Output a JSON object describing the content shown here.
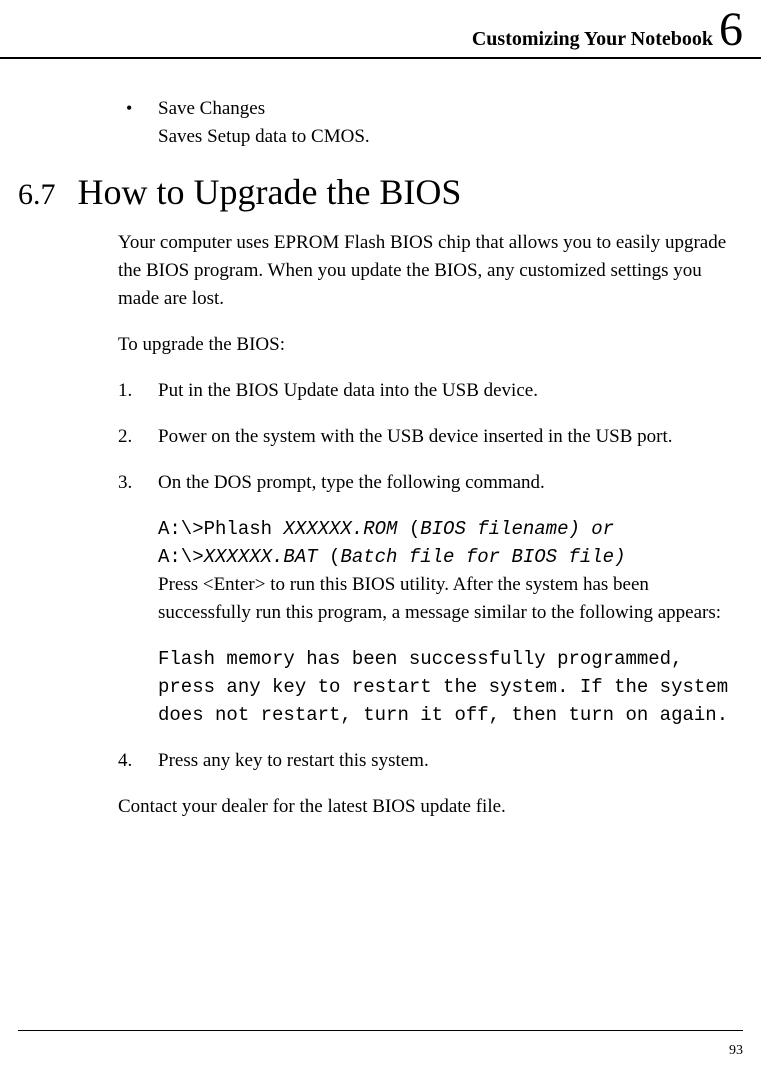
{
  "header": {
    "title": "Customizing Your Notebook",
    "chapter": "6"
  },
  "bullet": {
    "label": "Save Changes",
    "desc": "Saves Setup data to CMOS."
  },
  "section": {
    "number": "6.7",
    "title": "How to Upgrade the BIOS"
  },
  "intro": "Your computer uses EPROM Flash BIOS chip that allows you to easily upgrade the BIOS program. When you update the BIOS, any customized settings you made are lost.",
  "preamble": "To upgrade the BIOS:",
  "steps": {
    "s1": {
      "num": "1.",
      "text": "Put in the BIOS Update data into the USB device."
    },
    "s2": {
      "num": "2.",
      "text": "Power on the system with the USB device inserted in the USB port."
    },
    "s3": {
      "num": "3.",
      "text": "On the DOS prompt, type the following command.",
      "code_line1_a": "A:\\>Phlash ",
      "code_line1_b": "XXXXXX.ROM ",
      "code_line1_c": "(",
      "code_line1_d": "BIOS filename)  or",
      "code_line2_a": "A:\\>",
      "code_line2_b": "XXXXXX.BAT ",
      "code_line2_c": "(",
      "code_line2_d": "Batch file for BIOS file)",
      "after_code": "Press <Enter> to run this BIOS utility. After the system has been successfully run this program, a message similar to the following appears:",
      "message": "Flash memory has been successfully programmed, press any key to restart the system. If the system does not restart, turn it off, then turn on again."
    },
    "s4": {
      "num": "4.",
      "text": "Press any key to restart this system."
    }
  },
  "closing": "Contact your dealer for the latest BIOS update file.",
  "page_number": "93",
  "style": {
    "type": "document",
    "background_color": "#ffffff",
    "text_color": "#000000",
    "serif_font": "Garamond",
    "mono_font": "Courier New",
    "body_fontsize": 19,
    "heading_fontsize": 36,
    "section_num_fontsize": 30,
    "header_title_fontsize": 20,
    "chapter_num_fontsize": 48,
    "page_num_fontsize": 14,
    "rule_color": "#000000",
    "top_rule_width": 2,
    "bottom_rule_width": 1
  }
}
